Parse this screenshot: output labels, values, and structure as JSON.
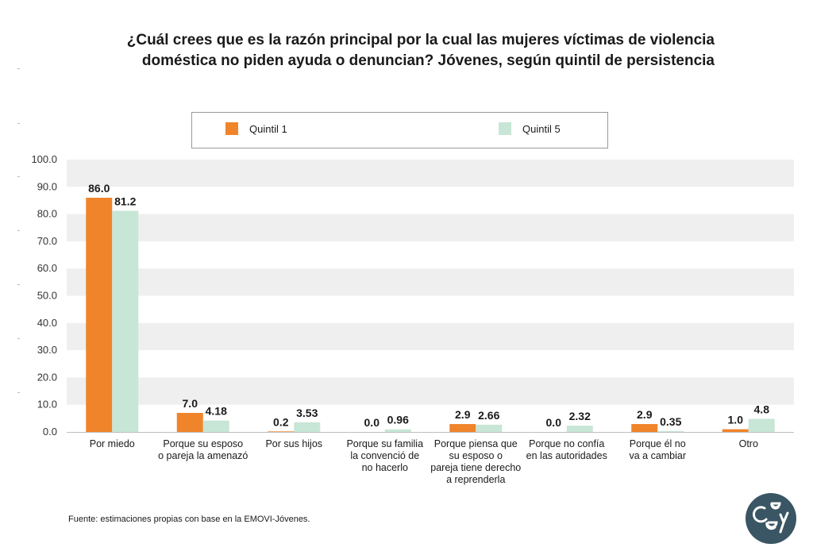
{
  "title": {
    "line1": "¿Cuál crees que es la razón principal por la cual las mujeres víctimas de violencia",
    "line2": "doméstica no piden ayuda o denuncian? Jóvenes, según quintil de persistencia"
  },
  "legend": [
    {
      "label": "Quintil 1",
      "color": "#F0842A"
    },
    {
      "label": "Quintil 5",
      "color": "#C8E6D6"
    }
  ],
  "chart_data": {
    "type": "bar",
    "categories": [
      "Por miedo",
      "Porque su esposo o pareja la amenazó",
      "Por sus hijos",
      "Porque su familia la convenció de no hacerlo",
      "Porque piensa que su esposo o pareja tiene derecho a reprenderla",
      "Porque no confía en las autoridades",
      "Porque él no va a cambiar",
      "Otro"
    ],
    "category_lines": [
      [
        "Por miedo"
      ],
      [
        "Porque su esposo",
        "o pareja la amenazó"
      ],
      [
        "Por sus hijos"
      ],
      [
        "Porque su familia",
        "la convenció de",
        "no hacerlo"
      ],
      [
        "Porque piensa que",
        "su esposo o",
        "pareja tiene derecho",
        "a reprenderla"
      ],
      [
        "Porque no confía",
        "en las autoridades"
      ],
      [
        "Porque él no",
        "va a cambiar"
      ],
      [
        "Otro"
      ]
    ],
    "series": [
      {
        "name": "Quintil 1",
        "color": "#F0842A",
        "values": [
          86.0,
          7.0,
          0.2,
          0.0,
          2.9,
          0.0,
          2.9,
          1.0
        ],
        "labels": [
          "86.0",
          "7.0",
          "0.2",
          "0.0",
          "2.9",
          "0.0",
          "2.9",
          "1.0"
        ]
      },
      {
        "name": "Quintil 5",
        "color": "#C8E6D6",
        "values": [
          81.2,
          4.18,
          3.53,
          0.96,
          2.66,
          2.32,
          0.35,
          4.8
        ],
        "labels": [
          "81.2",
          "4.18",
          "3.53",
          "0.96",
          "2.66",
          "2.32",
          "0.35",
          "4.8"
        ]
      }
    ],
    "y_ticks": [
      "0.0",
      "10.0",
      "20.0",
      "30.0",
      "40.0",
      "50.0",
      "60.0",
      "70.0",
      "80.0",
      "90.0",
      "100.0"
    ],
    "ylim": [
      0,
      100
    ],
    "grid": "alternating horizontal bands",
    "legend_position": "top"
  },
  "source": "Fuente: estimaciones propias con base en la EMOVI-Jóvenes.",
  "logo": {
    "name": "ceey-logo",
    "text": "ceey",
    "color": "#3A5563"
  }
}
